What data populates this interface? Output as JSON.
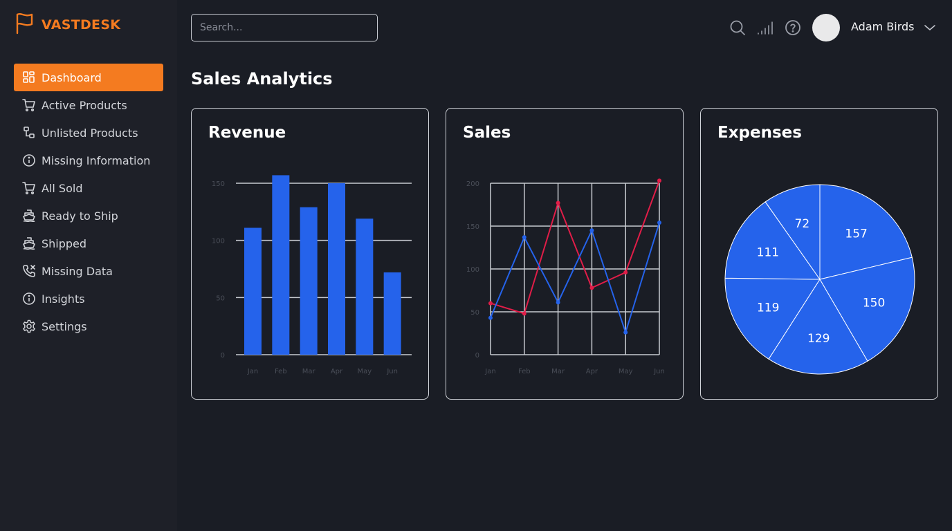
{
  "brand": {
    "name": "VASTDESK",
    "accent": "#f47b20"
  },
  "sidebar": {
    "items": [
      {
        "label": "Dashboard",
        "icon": "dashboard-icon",
        "active": true
      },
      {
        "label": "Active Products",
        "icon": "cart-icon"
      },
      {
        "label": "Unlisted Products",
        "icon": "nodes-icon"
      },
      {
        "label": "Missing Information",
        "icon": "info-icon"
      },
      {
        "label": "All Sold",
        "icon": "cart-icon"
      },
      {
        "label": "Ready to Ship",
        "icon": "ship-icon"
      },
      {
        "label": "Shipped",
        "icon": "ship-icon"
      },
      {
        "label": "Missing Data",
        "icon": "phone-x-icon"
      },
      {
        "label": "Insights",
        "icon": "info-icon"
      },
      {
        "label": "Settings",
        "icon": "gear-icon"
      }
    ]
  },
  "header": {
    "search_placeholder": "Search...",
    "user_name": "Adam Birds",
    "icons": [
      "search-icon",
      "signal-icon",
      "help-icon",
      "chevron-down-icon"
    ]
  },
  "main": {
    "title": "Sales Analytics"
  },
  "colors": {
    "blue": "#2563eb",
    "red": "#e11d48",
    "grid": "#c8cbd1",
    "tick": "#4a4e58"
  },
  "chart_data": [
    {
      "type": "bar",
      "title": "Revenue",
      "categories": [
        "Jan",
        "Feb",
        "Mar",
        "Apr",
        "May",
        "Jun"
      ],
      "values": [
        111,
        157,
        129,
        150,
        119,
        72
      ],
      "ylim": [
        0,
        150
      ],
      "yticks": [
        0,
        50,
        100,
        150
      ],
      "grid": true
    },
    {
      "type": "line",
      "title": "Sales",
      "x": [
        "Jan",
        "Feb",
        "Mar",
        "Apr",
        "May",
        "Jun"
      ],
      "ylim": [
        0,
        200
      ],
      "yticks": [
        0,
        50,
        100,
        150,
        200
      ],
      "grid": true,
      "series": [
        {
          "color": "#e11d48",
          "values": [
            60,
            48,
            177,
            78,
            96,
            203
          ]
        },
        {
          "color": "#2563eb",
          "values": [
            43,
            137,
            61,
            145,
            26,
            154
          ]
        }
      ]
    },
    {
      "type": "pie",
      "title": "Expenses",
      "values": [
        157,
        150,
        129,
        119,
        111,
        72
      ]
    }
  ]
}
